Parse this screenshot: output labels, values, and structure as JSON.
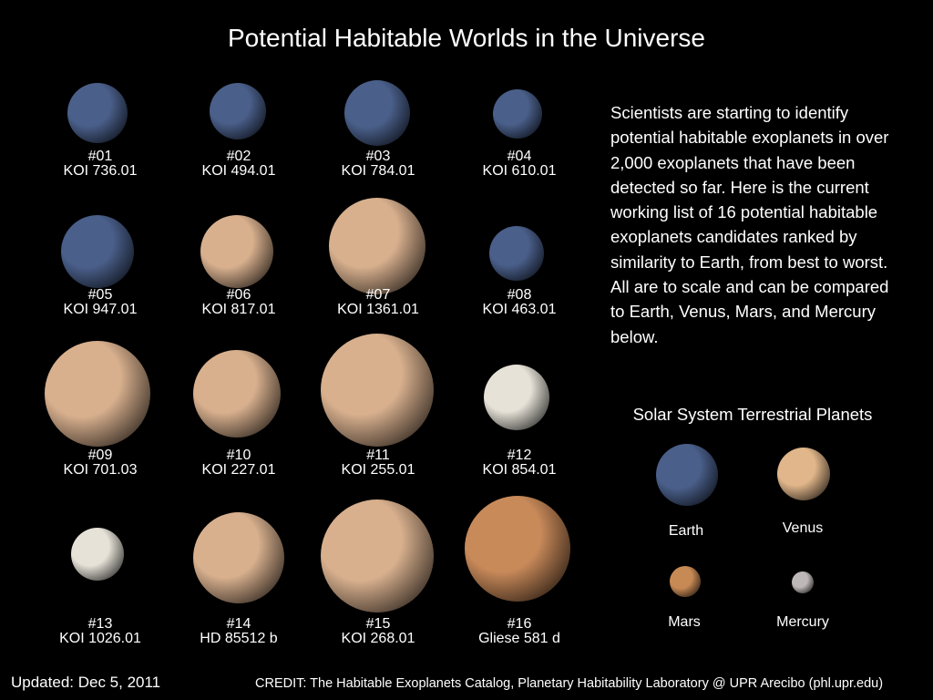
{
  "title": "Potential Habitable Worlds in the Universe",
  "description": "Scientists are starting to identify potential habitable exoplanets in over 2,000 exoplanets that have been detected so far. Here is the current working list of 16 potential habitable exoplanets candidates ranked by similarity to Earth, from best to worst. All are to scale and can be compared to Earth, Venus, Mars, and Mercury below.",
  "exoplanets": [
    {
      "rank": "#01",
      "name": "KOI 736.01",
      "appearance": "blue"
    },
    {
      "rank": "#02",
      "name": "KOI 494.01",
      "appearance": "blue"
    },
    {
      "rank": "#03",
      "name": "KOI 784.01",
      "appearance": "blue"
    },
    {
      "rank": "#04",
      "name": "KOI 610.01",
      "appearance": "blue"
    },
    {
      "rank": "#05",
      "name": "KOI 947.01",
      "appearance": "blue"
    },
    {
      "rank": "#06",
      "name": "KOI 817.01",
      "appearance": "tan"
    },
    {
      "rank": "#07",
      "name": "KOI 1361.01",
      "appearance": "tan"
    },
    {
      "rank": "#08",
      "name": "KOI 463.01",
      "appearance": "blue"
    },
    {
      "rank": "#09",
      "name": "KOI 701.03",
      "appearance": "tan"
    },
    {
      "rank": "#10",
      "name": "KOI 227.01",
      "appearance": "tan"
    },
    {
      "rank": "#11",
      "name": "KOI 255.01",
      "appearance": "tan"
    },
    {
      "rank": "#12",
      "name": "KOI 854.01",
      "appearance": "pale"
    },
    {
      "rank": "#13",
      "name": "KOI 1026.01",
      "appearance": "pale"
    },
    {
      "rank": "#14",
      "name": "HD 85512 b",
      "appearance": "tan"
    },
    {
      "rank": "#15",
      "name": "KOI 268.01",
      "appearance": "tan"
    },
    {
      "rank": "#16",
      "name": "Gliese 581 d",
      "appearance": "orange"
    }
  ],
  "solar_system": {
    "heading": "Solar System Terrestrial Planets",
    "planets": [
      {
        "name": "Earth",
        "appearance": "blue"
      },
      {
        "name": "Venus",
        "appearance": "venus"
      },
      {
        "name": "Mars",
        "appearance": "mars"
      },
      {
        "name": "Mercury",
        "appearance": "mercury"
      }
    ]
  },
  "colors": {
    "blue": "#4a5f8a",
    "tan": "#d8b08e",
    "pale": "#e6e2d8",
    "orange": "#c98a5a",
    "venus": "#e0b68a",
    "mars": "#c88a55",
    "mercury": "#bfb8b8"
  },
  "footer": {
    "updated": "Updated: Dec 5, 2011",
    "credit": "CREDIT: The Habitable Exoplanets Catalog, Planetary Habitability Laboratory @ UPR Arecibo (phl.upr.edu)"
  }
}
